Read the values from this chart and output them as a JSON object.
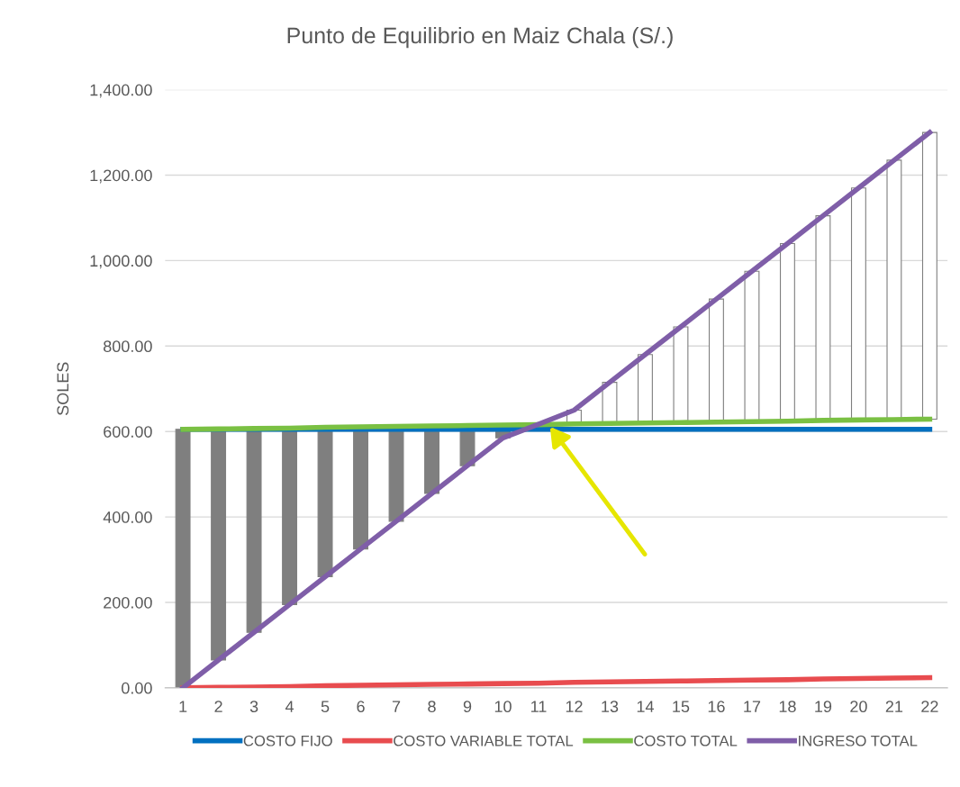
{
  "chart_data": {
    "type": "line",
    "title": "Punto de Equilibrio en Maiz Chala (S/.)",
    "ylabel": "SOLES",
    "categories": [
      "1",
      "2",
      "3",
      "4",
      "5",
      "6",
      "7",
      "8",
      "9",
      "10",
      "11",
      "12",
      "13",
      "14",
      "15",
      "16",
      "17",
      "18",
      "19",
      "20",
      "21",
      "22"
    ],
    "series": [
      {
        "type": "bar",
        "base": [
          605,
          606,
          607,
          608,
          610,
          611,
          612,
          613,
          614,
          615,
          616,
          618,
          619,
          620,
          621,
          622,
          623,
          624,
          626,
          627,
          628,
          629
        ],
        "values": [
          -605,
          -541,
          -477,
          -413,
          -350,
          -286,
          -222,
          -158,
          -94,
          -30,
          1,
          32,
          96,
          160,
          224,
          288,
          352,
          416,
          479,
          543,
          607,
          671
        ],
        "colors": [
          "#7f7f7f",
          "#7f7f7f",
          "#7f7f7f",
          "#7f7f7f",
          "#7f7f7f",
          "#7f7f7f",
          "#7f7f7f",
          "#7f7f7f",
          "#7f7f7f",
          "#7f7f7f",
          "#ffffff",
          "#ffffff",
          "#ffffff",
          "#ffffff",
          "#ffffff",
          "#ffffff",
          "#ffffff",
          "#ffffff",
          "#ffffff",
          "#ffffff",
          "#ffffff",
          "#ffffff"
        ]
      },
      {
        "name": "COSTO FIJO",
        "color": "#0070c0",
        "values": [
          605,
          605,
          605,
          605,
          605,
          605,
          605,
          605,
          605,
          605,
          605,
          605,
          605,
          605,
          605,
          605,
          605,
          605,
          605,
          605,
          605,
          605
        ]
      },
      {
        "name": "COSTO VARIABLE TOTAL",
        "color": "#e84c4f",
        "values": [
          0,
          1,
          2,
          3,
          5,
          6,
          7,
          8,
          9,
          10,
          11,
          13,
          14,
          15,
          16,
          17,
          18,
          19,
          21,
          22,
          23,
          24
        ]
      },
      {
        "name": "COSTO TOTAL",
        "color": "#7ac043",
        "values": [
          605,
          606,
          607,
          608,
          610,
          611,
          612,
          613,
          614,
          615,
          616,
          618,
          619,
          620,
          621,
          622,
          623,
          624,
          626,
          627,
          628,
          629
        ]
      },
      {
        "name": "INGRESO TOTAL",
        "color": "#7f5ea8",
        "values": [
          0,
          65,
          130,
          195,
          260,
          325,
          390,
          455,
          520,
          585,
          617,
          650,
          715,
          780,
          845,
          910,
          975,
          1040,
          1105,
          1170,
          1235,
          1300
        ]
      }
    ],
    "ylim": [
      0,
      1400
    ],
    "yticks": [
      {
        "value": 0,
        "label": "0.00"
      },
      {
        "value": 200,
        "label": "200.00"
      },
      {
        "value": 400,
        "label": "400.00"
      },
      {
        "value": 600,
        "label": "600.00"
      },
      {
        "value": 800,
        "label": "800.00"
      },
      {
        "value": 1000,
        "label": "1,000.00"
      },
      {
        "value": 1200,
        "label": "1,200.00"
      },
      {
        "value": 1400,
        "label": "1,400.00"
      }
    ],
    "grid": "y",
    "legend": "bottom",
    "marker": "none",
    "line_style": "solid"
  }
}
